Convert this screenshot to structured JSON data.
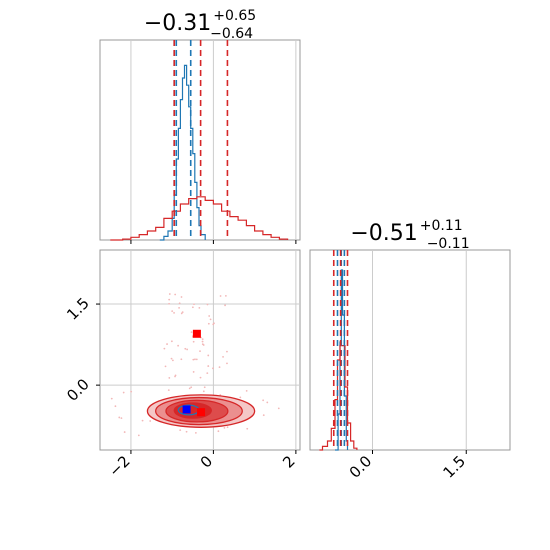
{
  "chart_data": [
    {
      "type": "histogram",
      "panel": "top-left marginal",
      "title_main": "−0.31",
      "title_sup": "+0.65",
      "title_sub": "−0.64",
      "xlim": [
        -2.75,
        2.1
      ],
      "grid": true,
      "series": [
        {
          "name": "",
          "color": "#1f77b4",
          "bins": [
            [
              -1.3,
              0.0
            ],
            [
              -1.2,
              0.02
            ],
            [
              -1.1,
              0.05
            ],
            [
              -1.0,
              0.12
            ],
            [
              -0.95,
              0.25
            ],
            [
              -0.9,
              0.45
            ],
            [
              -0.85,
              0.62
            ],
            [
              -0.8,
              0.78
            ],
            [
              -0.75,
              0.9
            ],
            [
              -0.7,
              0.97
            ],
            [
              -0.65,
              0.86
            ],
            [
              -0.6,
              0.74
            ],
            [
              -0.55,
              0.62
            ],
            [
              -0.5,
              0.48
            ],
            [
              -0.45,
              0.32
            ],
            [
              -0.4,
              0.18
            ],
            [
              -0.35,
              0.08
            ],
            [
              -0.3,
              0.03
            ],
            [
              -0.2,
              0.0
            ]
          ],
          "quantile_lines": [
            -0.95,
            -0.55,
            -0.9
          ]
        },
        {
          "name": "",
          "color": "#d62728",
          "bins": [
            [
              -2.5,
              0.0
            ],
            [
              -2.2,
              0.005
            ],
            [
              -2.0,
              0.015
            ],
            [
              -1.8,
              0.03
            ],
            [
              -1.6,
              0.05
            ],
            [
              -1.4,
              0.07
            ],
            [
              -1.2,
              0.12
            ],
            [
              -1.0,
              0.16
            ],
            [
              -0.8,
              0.2
            ],
            [
              -0.6,
              0.23
            ],
            [
              -0.4,
              0.24
            ],
            [
              -0.2,
              0.22
            ],
            [
              0.0,
              0.2
            ],
            [
              0.2,
              0.16
            ],
            [
              0.4,
              0.13
            ],
            [
              0.6,
              0.11
            ],
            [
              0.8,
              0.08
            ],
            [
              1.0,
              0.05
            ],
            [
              1.2,
              0.03
            ],
            [
              1.4,
              0.015
            ],
            [
              1.6,
              0.005
            ],
            [
              1.8,
              0.0
            ]
          ],
          "quantile_lines": [
            -0.95,
            -0.31,
            0.34
          ]
        }
      ]
    },
    {
      "type": "histogram",
      "panel": "bottom-right marginal",
      "title_main": "−0.51",
      "title_sup": "+0.11",
      "title_sub": "−0.11",
      "xlim": [
        -1.0,
        2.2
      ],
      "xticks": [
        "0.0",
        "1.5"
      ],
      "grid": true,
      "series": [
        {
          "name": "",
          "color": "#1f77b4",
          "bins": [
            [
              -0.6,
              0.0
            ],
            [
              -0.55,
              0.2
            ],
            [
              -0.52,
              0.6
            ],
            [
              -0.5,
              1.0
            ],
            [
              -0.48,
              0.75
            ],
            [
              -0.45,
              0.3
            ],
            [
              -0.42,
              0.05
            ],
            [
              -0.4,
              0.0
            ]
          ],
          "quantile_lines": [
            -0.56,
            -0.5,
            -0.45
          ]
        },
        {
          "name": "",
          "color": "#d62728",
          "bins": [
            [
              -0.85,
              0.0
            ],
            [
              -0.8,
              0.02
            ],
            [
              -0.72,
              0.05
            ],
            [
              -0.66,
              0.12
            ],
            [
              -0.6,
              0.28
            ],
            [
              -0.56,
              0.5
            ],
            [
              -0.52,
              0.58
            ],
            [
              -0.48,
              0.58
            ],
            [
              -0.44,
              0.35
            ],
            [
              -0.4,
              0.15
            ],
            [
              -0.35,
              0.05
            ],
            [
              -0.3,
              0.01
            ],
            [
              -0.25,
              0.0
            ]
          ],
          "quantile_lines": [
            -0.62,
            -0.51,
            -0.4
          ]
        }
      ]
    },
    {
      "type": "scatter",
      "panel": "bottom-left joint",
      "xlim": [
        -2.75,
        2.1
      ],
      "ylim": [
        -1.2,
        2.5
      ],
      "xticks": [
        "−2",
        "0",
        "2"
      ],
      "yticks": [
        "0.0",
        "1.5"
      ],
      "grid": true,
      "markers": [
        {
          "x": -0.4,
          "y": 0.95,
          "color": "#ff0000"
        },
        {
          "x": -0.65,
          "y": -0.45,
          "color": "#0000ff"
        },
        {
          "x": -0.3,
          "y": -0.5,
          "color": "#ff0000"
        }
      ],
      "contours": [
        {
          "cx": -0.3,
          "cy": -0.48,
          "rx": 1.3,
          "ry": 0.3,
          "fill": "#f4c7c7"
        },
        {
          "cx": -0.35,
          "cy": -0.48,
          "rx": 1.05,
          "ry": 0.25,
          "fill": "#eb8f8f"
        },
        {
          "cx": -0.4,
          "cy": -0.48,
          "rx": 0.75,
          "ry": 0.2,
          "fill": "#dd4c4c"
        },
        {
          "cx": -0.5,
          "cy": -0.47,
          "rx": 0.45,
          "ry": 0.14,
          "fill": "#d62728"
        },
        {
          "cx": -0.6,
          "cy": -0.46,
          "rx": 0.25,
          "ry": 0.09,
          "fill": "#1f77b4"
        }
      ]
    }
  ]
}
